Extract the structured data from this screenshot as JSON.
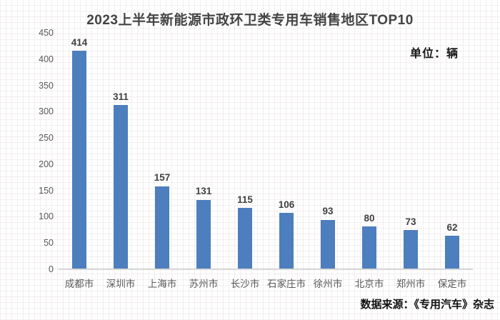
{
  "title": "2023上半年新能源市政环卫类专用车销售地区TOP10",
  "unit_label": "单位：辆",
  "source_label": "数据来源：《专用汽车》杂志",
  "colors": {
    "bar": "#4d7ebd",
    "axis_line": "#d9d9d9",
    "tick_text": "#595959",
    "value_text": "#404040",
    "title_text": "#444444",
    "background": "#ffffff"
  },
  "chart_data": {
    "type": "bar",
    "title": "2023上半年新能源市政环卫类专用车销售地区TOP10",
    "categories": [
      "成都市",
      "深圳市",
      "上海市",
      "苏州市",
      "长沙市",
      "石家庄市",
      "徐州市",
      "北京市",
      "郑州市",
      "保定市"
    ],
    "values": [
      414,
      311,
      157,
      131,
      115,
      106,
      93,
      80,
      73,
      62
    ],
    "xlabel": "",
    "ylabel": "",
    "unit": "辆",
    "ylim": [
      0,
      450
    ],
    "yticks": [
      0,
      50,
      100,
      150,
      200,
      250,
      300,
      350,
      400,
      450
    ],
    "grid": false,
    "legend_position": "none",
    "data_labels": true,
    "source": "数据来源：《专用汽车》杂志"
  }
}
